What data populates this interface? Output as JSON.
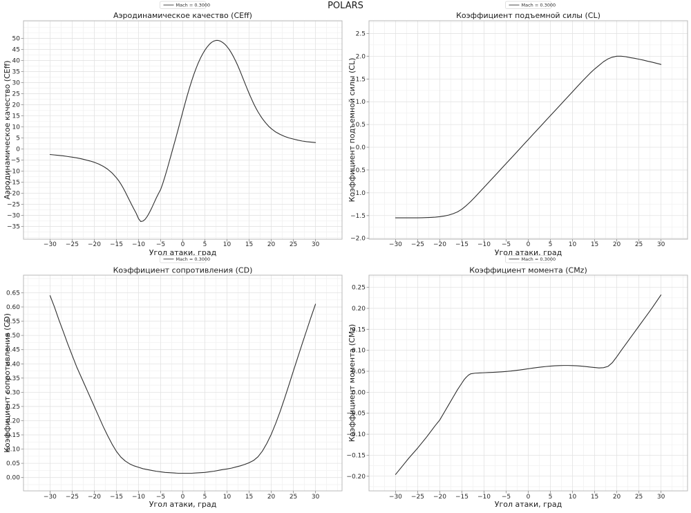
{
  "figure_title": "POLARS",
  "colors": {
    "background": "#ffffff",
    "curve": "#2e2e2e",
    "grid_major": "#e2e2e2",
    "grid_minor": "#f2f2f2",
    "spine": "#b9b9b9",
    "tick_mark": "#888888",
    "text": "#1a1a1a"
  },
  "chart_data": [
    {
      "type": "line",
      "title": "Аэродинамическое качество (CEff)",
      "xlabel": "Угол атаки, град",
      "ylabel": "Аэродинамическое качество (CEff)",
      "legend_label": "Mach = 0.3000",
      "legend_position": "above-title",
      "grid": true,
      "xlim": [
        -36,
        36
      ],
      "ylim": [
        -40.8,
        58.0
      ],
      "xticks": [
        -30,
        -25,
        -20,
        -15,
        -10,
        -5,
        0,
        5,
        10,
        15,
        20,
        25,
        30
      ],
      "yticks": [
        -35,
        -30,
        -25,
        -20,
        -15,
        -10,
        -5,
        0,
        5,
        10,
        15,
        20,
        25,
        30,
        35,
        40,
        45,
        50
      ],
      "ytick_decimals": 0,
      "x": [
        -30,
        -29,
        -28,
        -27,
        -26,
        -25,
        -24,
        -23,
        -22,
        -21,
        -20,
        -19,
        -18,
        -17,
        -16,
        -15,
        -14.5,
        -14,
        -13.5,
        -13,
        -12.5,
        -12,
        -11.5,
        -11,
        -10.5,
        -10,
        -9.5,
        -9,
        -8.5,
        -8,
        -7.5,
        -7,
        -6.5,
        -6,
        -5.5,
        -5,
        -4.5,
        -4,
        -3.5,
        -3,
        -2.5,
        -2,
        -1.5,
        -1,
        -0.5,
        0,
        0.5,
        1,
        1.5,
        2,
        2.5,
        3,
        3.5,
        4,
        4.5,
        5,
        5.5,
        6,
        6.5,
        7,
        7.5,
        8,
        8.5,
        9,
        9.5,
        10,
        10.5,
        11,
        11.5,
        12,
        12.5,
        13,
        13.5,
        14,
        14.5,
        15,
        15.5,
        16,
        16.5,
        17,
        17.5,
        18,
        18.5,
        19,
        19.5,
        20,
        21,
        22,
        23,
        24,
        25,
        26,
        27,
        28,
        29,
        30
      ],
      "y": [
        -2.5,
        -2.7,
        -2.9,
        -3.1,
        -3.4,
        -3.7,
        -4.0,
        -4.4,
        -4.9,
        -5.4,
        -6.0,
        -6.8,
        -7.8,
        -9.1,
        -10.8,
        -13.0,
        -14.3,
        -15.8,
        -17.5,
        -19.4,
        -21.4,
        -23.4,
        -25.4,
        -27.3,
        -29.2,
        -31.5,
        -32.8,
        -32.6,
        -31.8,
        -30.4,
        -28.6,
        -26.6,
        -24.4,
        -22.2,
        -20.2,
        -18.3,
        -15.5,
        -12.3,
        -8.9,
        -5.3,
        -1.7,
        1.9,
        5.5,
        9.2,
        13.0,
        16.8,
        20.5,
        24.1,
        27.5,
        30.7,
        33.7,
        36.4,
        38.9,
        41.1,
        43.0,
        44.7,
        46.1,
        47.3,
        48.2,
        48.8,
        49.1,
        49.1,
        48.8,
        48.2,
        47.4,
        46.3,
        45.0,
        43.4,
        41.6,
        39.6,
        37.4,
        35.0,
        32.5,
        30.0,
        27.5,
        25.1,
        22.8,
        20.6,
        18.6,
        16.8,
        15.2,
        13.7,
        12.4,
        11.2,
        10.1,
        9.2,
        7.7,
        6.6,
        5.7,
        5.0,
        4.5,
        4.0,
        3.6,
        3.3,
        3.1,
        2.9
      ]
    },
    {
      "type": "line",
      "title": "Коэффициент подъемной силы (CL)",
      "xlabel": "Угол атаки, град",
      "ylabel": "Коэффициент подъемной силы (CL)",
      "legend_label": "Mach = 0.3000",
      "legend_position": "above-title",
      "grid": true,
      "xlim": [
        -36,
        36
      ],
      "ylim": [
        -2.02,
        2.78
      ],
      "xticks": [
        -30,
        -25,
        -20,
        -15,
        -10,
        -5,
        0,
        5,
        10,
        15,
        20,
        25,
        30
      ],
      "yticks": [
        -2.0,
        -1.5,
        -1.0,
        -0.5,
        0.0,
        0.5,
        1.0,
        1.5,
        2.0,
        2.5
      ],
      "ytick_decimals": 1,
      "x": [
        -30,
        -29,
        -28,
        -27,
        -26,
        -25,
        -24,
        -23,
        -22,
        -21,
        -20,
        -19,
        -18,
        -17,
        -16,
        -15,
        -14,
        -13,
        -12,
        -11,
        -10,
        -9,
        -8,
        -7,
        -6,
        -5,
        -4,
        -3,
        -2,
        -1,
        0,
        1,
        2,
        3,
        4,
        5,
        6,
        7,
        8,
        9,
        10,
        11,
        12,
        13,
        14,
        15,
        16,
        17,
        18,
        19,
        20,
        21,
        22,
        23,
        24,
        25,
        26,
        27,
        28,
        29,
        30
      ],
      "y": [
        -1.55,
        -1.55,
        -1.55,
        -1.55,
        -1.55,
        -1.55,
        -1.548,
        -1.545,
        -1.54,
        -1.535,
        -1.525,
        -1.51,
        -1.49,
        -1.46,
        -1.42,
        -1.36,
        -1.28,
        -1.19,
        -1.09,
        -0.985,
        -0.88,
        -0.777,
        -0.672,
        -0.567,
        -0.462,
        -0.357,
        -0.252,
        -0.147,
        -0.042,
        0.065,
        0.17,
        0.275,
        0.38,
        0.485,
        0.59,
        0.695,
        0.8,
        0.905,
        1.01,
        1.115,
        1.22,
        1.325,
        1.43,
        1.53,
        1.63,
        1.72,
        1.8,
        1.88,
        1.94,
        1.98,
        2.0,
        2.0,
        1.99,
        1.97,
        1.955,
        1.935,
        1.915,
        1.89,
        1.87,
        1.845,
        1.82
      ]
    },
    {
      "type": "line",
      "title": "Коэффициент сопротивления (CD)",
      "xlabel": "Угол атаки, град",
      "ylabel": "Коэффициент сопротивления (CD)",
      "legend_label": "Mach = 0.3000",
      "legend_position": "above-title",
      "grid": true,
      "xlim": [
        -36,
        36
      ],
      "ylim": [
        -0.047,
        0.712
      ],
      "xticks": [
        -30,
        -25,
        -20,
        -15,
        -10,
        -5,
        0,
        5,
        10,
        15,
        20,
        25,
        30
      ],
      "yticks": [
        0.0,
        0.05,
        0.1,
        0.15,
        0.2,
        0.25,
        0.3,
        0.35,
        0.4,
        0.45,
        0.5,
        0.55,
        0.6,
        0.65
      ],
      "ytick_decimals": 2,
      "x": [
        -30,
        -29,
        -28,
        -27,
        -26,
        -25,
        -24,
        -23,
        -22,
        -21,
        -20,
        -19,
        -18,
        -17,
        -16,
        -15,
        -14,
        -13,
        -12,
        -11,
        -10,
        -9,
        -8,
        -7,
        -6,
        -5,
        -4,
        -3,
        -2,
        -1,
        0,
        1,
        2,
        3,
        4,
        5,
        6,
        7,
        8,
        9,
        10,
        11,
        12,
        13,
        14,
        15,
        16,
        17,
        18,
        19,
        20,
        21,
        22,
        23,
        24,
        25,
        26,
        27,
        28,
        29,
        30
      ],
      "y": [
        0.64,
        0.6,
        0.555,
        0.513,
        0.47,
        0.43,
        0.39,
        0.355,
        0.32,
        0.285,
        0.25,
        0.215,
        0.18,
        0.148,
        0.118,
        0.092,
        0.072,
        0.058,
        0.048,
        0.041,
        0.036,
        0.031,
        0.028,
        0.025,
        0.022,
        0.02,
        0.018,
        0.017,
        0.016,
        0.015,
        0.015,
        0.015,
        0.015,
        0.016,
        0.017,
        0.018,
        0.02,
        0.022,
        0.025,
        0.028,
        0.03,
        0.033,
        0.037,
        0.041,
        0.046,
        0.052,
        0.06,
        0.073,
        0.093,
        0.12,
        0.152,
        0.19,
        0.232,
        0.278,
        0.326,
        0.375,
        0.423,
        0.471,
        0.518,
        0.565,
        0.61
      ]
    },
    {
      "type": "line",
      "title": "Коэффициент момента (CMz)",
      "xlabel": "Угол атаки, град",
      "ylabel": "Коэффициент момента (CMz)",
      "legend_label": "Mach = 0.3000",
      "legend_position": "above-title",
      "grid": true,
      "xlim": [
        -36,
        36
      ],
      "ylim": [
        -0.235,
        0.279
      ],
      "xticks": [
        -30,
        -25,
        -20,
        -15,
        -10,
        -5,
        0,
        5,
        10,
        15,
        20,
        25,
        30
      ],
      "yticks": [
        -0.2,
        -0.15,
        -0.1,
        -0.05,
        0.0,
        0.05,
        0.1,
        0.15,
        0.2,
        0.25
      ],
      "ytick_decimals": 2,
      "x": [
        -30,
        -29,
        -28,
        -27,
        -26,
        -25,
        -24,
        -23,
        -22,
        -21,
        -20,
        -19,
        -18,
        -17,
        -16,
        -15,
        -14.5,
        -14,
        -13.5,
        -13,
        -12,
        -11,
        -10,
        -9,
        -8,
        -7,
        -6,
        -5,
        -4,
        -3,
        -2,
        -1,
        0,
        1,
        2,
        3,
        4,
        5,
        6,
        7,
        8,
        9,
        10,
        11,
        12,
        13,
        14,
        15,
        16,
        17,
        18,
        19,
        20,
        21,
        22,
        23,
        24,
        25,
        26,
        27,
        28,
        29,
        30
      ],
      "y": [
        -0.196,
        -0.183,
        -0.17,
        -0.157,
        -0.145,
        -0.133,
        -0.12,
        -0.107,
        -0.093,
        -0.079,
        -0.066,
        -0.048,
        -0.03,
        -0.012,
        0.006,
        0.022,
        0.03,
        0.036,
        0.041,
        0.044,
        0.0455,
        0.046,
        0.0465,
        0.047,
        0.0475,
        0.048,
        0.0487,
        0.0495,
        0.0505,
        0.0518,
        0.053,
        0.0545,
        0.056,
        0.0575,
        0.059,
        0.0602,
        0.0613,
        0.0622,
        0.063,
        0.0635,
        0.0638,
        0.0638,
        0.0635,
        0.063,
        0.0622,
        0.0612,
        0.06,
        0.059,
        0.058,
        0.0585,
        0.0615,
        0.0705,
        0.0845,
        0.0995,
        0.114,
        0.1285,
        0.143,
        0.1575,
        0.172,
        0.1865,
        0.201,
        0.2165,
        0.232
      ]
    }
  ]
}
